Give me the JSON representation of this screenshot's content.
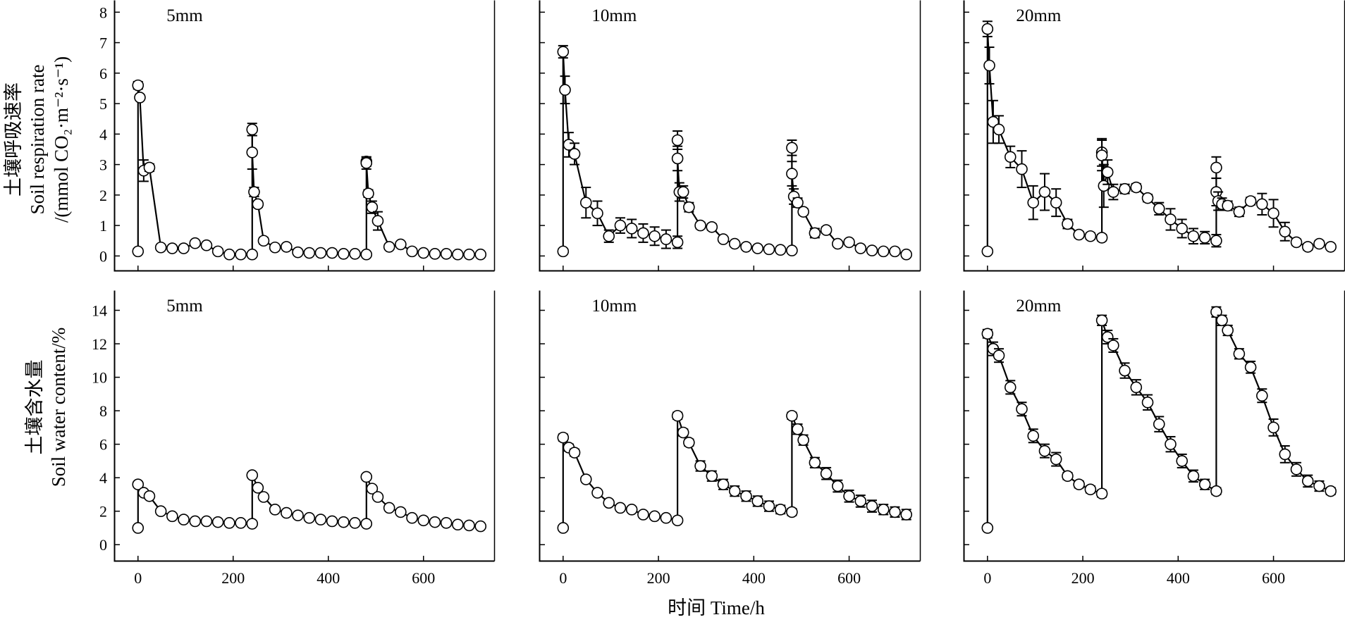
{
  "figure": {
    "ylabel_top_lines": [
      "土壤呼吸速率",
      "Soil respiration rate",
      "/(mmol CO₂·m⁻²·s⁻¹)"
    ],
    "ylabel_bottom_lines": [
      "土壤含水量",
      "Soil water content/%"
    ],
    "xlabel": "时间 Time/h"
  },
  "chart_data": [
    {
      "type": "line",
      "title": "5mm",
      "row": "respiration",
      "xlim": [
        -50,
        750
      ],
      "ylim": [
        -0.5,
        8.4
      ],
      "xticks": [
        0,
        200,
        400,
        600
      ],
      "yticks": [
        0,
        1,
        2,
        3,
        4,
        5,
        6,
        7,
        8
      ],
      "x": [
        0,
        0,
        4,
        12,
        24,
        48,
        72,
        96,
        120,
        144,
        168,
        192,
        216,
        240,
        240,
        240,
        244,
        252,
        264,
        288,
        312,
        336,
        360,
        384,
        408,
        432,
        456,
        480,
        480,
        480,
        484,
        492,
        504,
        528,
        552,
        576,
        600,
        624,
        648,
        672,
        696,
        720
      ],
      "y": [
        0.15,
        5.6,
        5.2,
        2.8,
        2.9,
        0.28,
        0.25,
        0.25,
        0.42,
        0.35,
        0.15,
        0.05,
        0.05,
        0.05,
        4.15,
        3.4,
        2.1,
        1.7,
        0.5,
        0.28,
        0.3,
        0.12,
        0.1,
        0.1,
        0.1,
        0.07,
        0.07,
        0.05,
        3.1,
        3.05,
        2.05,
        1.6,
        1.15,
        0.3,
        0.38,
        0.15,
        0.1,
        0.07,
        0.07,
        0.05,
        0.05,
        0.05
      ],
      "error": [
        0,
        0.12,
        0.08,
        0.35,
        0.12,
        0.08,
        0.05,
        0.05,
        0.08,
        0.08,
        0.05,
        0.03,
        0.03,
        0.03,
        0.2,
        0.55,
        0.15,
        0.1,
        0.1,
        0.05,
        0.05,
        0.03,
        0.03,
        0.03,
        0.03,
        0.03,
        0.03,
        0.03,
        0.15,
        0.2,
        0.12,
        0.2,
        0.3,
        0.08,
        0.08,
        0.05,
        0.03,
        0.03,
        0.03,
        0.02,
        0.02,
        0.02
      ]
    },
    {
      "type": "line",
      "title": "10mm",
      "row": "respiration",
      "xlim": [
        -50,
        750
      ],
      "ylim": [
        -0.5,
        8.4
      ],
      "xticks": [
        0,
        200,
        400,
        600
      ],
      "yticks": [
        0,
        1,
        2,
        3,
        4,
        5,
        6,
        7,
        8
      ],
      "x": [
        0,
        0,
        4,
        12,
        24,
        48,
        72,
        96,
        120,
        144,
        168,
        192,
        216,
        240,
        240,
        240,
        244,
        252,
        264,
        288,
        312,
        336,
        360,
        384,
        408,
        432,
        456,
        480,
        480,
        480,
        484,
        492,
        504,
        528,
        552,
        576,
        600,
        624,
        648,
        672,
        696,
        720
      ],
      "y": [
        0.15,
        6.7,
        5.45,
        3.65,
        3.35,
        1.75,
        1.4,
        0.65,
        1.0,
        0.9,
        0.75,
        0.65,
        0.55,
        0.45,
        3.8,
        3.2,
        2.1,
        2.1,
        1.6,
        1.0,
        0.95,
        0.55,
        0.4,
        0.3,
        0.25,
        0.22,
        0.2,
        0.18,
        3.55,
        2.7,
        1.95,
        1.75,
        1.45,
        0.75,
        0.85,
        0.4,
        0.45,
        0.25,
        0.18,
        0.15,
        0.15,
        0.05
      ],
      "error": [
        0,
        0.2,
        0.45,
        0.4,
        0.35,
        0.5,
        0.4,
        0.2,
        0.25,
        0.3,
        0.3,
        0.3,
        0.3,
        0.2,
        0.3,
        0.4,
        0.3,
        0.2,
        0.15,
        0.1,
        0.1,
        0.08,
        0.08,
        0.06,
        0.06,
        0.05,
        0.05,
        0.05,
        0.25,
        0.4,
        0.25,
        0.15,
        0.1,
        0.15,
        0.1,
        0.08,
        0.08,
        0.06,
        0.05,
        0.05,
        0.06,
        0.03
      ]
    },
    {
      "type": "line",
      "title": "20mm",
      "row": "respiration",
      "xlim": [
        -50,
        750
      ],
      "ylim": [
        -0.5,
        8.4
      ],
      "xticks": [
        0,
        200,
        400,
        600
      ],
      "yticks": [
        0,
        1,
        2,
        3,
        4,
        5,
        6,
        7,
        8
      ],
      "x": [
        0,
        0,
        4,
        12,
        24,
        48,
        72,
        96,
        120,
        144,
        168,
        192,
        216,
        240,
        240,
        240,
        244,
        252,
        264,
        288,
        312,
        336,
        360,
        384,
        408,
        432,
        456,
        480,
        480,
        480,
        484,
        492,
        504,
        528,
        552,
        576,
        600,
        624,
        648,
        672,
        696,
        720
      ],
      "y": [
        0.15,
        7.45,
        6.25,
        4.4,
        4.15,
        3.25,
        2.85,
        1.75,
        2.1,
        1.75,
        1.05,
        0.7,
        0.65,
        0.6,
        3.4,
        3.3,
        2.3,
        2.75,
        2.1,
        2.2,
        2.25,
        1.9,
        1.55,
        1.2,
        0.9,
        0.65,
        0.6,
        0.5,
        2.9,
        2.1,
        1.8,
        1.7,
        1.65,
        1.45,
        1.8,
        1.7,
        1.4,
        0.8,
        0.45,
        0.3,
        0.4,
        0.3
      ],
      "error": [
        0,
        0.25,
        0.6,
        0.7,
        0.45,
        0.35,
        0.6,
        0.55,
        0.6,
        0.45,
        0.15,
        0.1,
        0.1,
        0.1,
        0.45,
        0.5,
        0.7,
        0.4,
        0.25,
        0.15,
        0.12,
        0.12,
        0.2,
        0.35,
        0.3,
        0.25,
        0.2,
        0.2,
        0.35,
        0.45,
        0.3,
        0.2,
        0.15,
        0.15,
        0.12,
        0.35,
        0.45,
        0.3,
        0.1,
        0.1,
        0.1,
        0.08
      ]
    },
    {
      "type": "line",
      "title": "5mm",
      "row": "water",
      "xlim": [
        -50,
        750
      ],
      "ylim": [
        -1.0,
        15.2
      ],
      "xticks": [
        0,
        200,
        400,
        600
      ],
      "yticks": [
        0,
        2,
        4,
        6,
        8,
        10,
        12,
        14
      ],
      "x": [
        0,
        0,
        12,
        24,
        48,
        72,
        96,
        120,
        144,
        168,
        192,
        216,
        240,
        240,
        252,
        264,
        288,
        312,
        336,
        360,
        384,
        408,
        432,
        456,
        480,
        480,
        492,
        504,
        528,
        552,
        576,
        600,
        624,
        648,
        672,
        696,
        720
      ],
      "y": [
        1.0,
        3.6,
        3.1,
        2.9,
        2.0,
        1.7,
        1.5,
        1.4,
        1.4,
        1.35,
        1.3,
        1.3,
        1.25,
        4.15,
        3.4,
        2.85,
        2.1,
        1.9,
        1.75,
        1.6,
        1.5,
        1.4,
        1.35,
        1.3,
        1.25,
        4.05,
        3.35,
        2.85,
        2.2,
        1.95,
        1.6,
        1.45,
        1.35,
        1.3,
        1.2,
        1.15,
        1.1
      ],
      "error": [
        0,
        0.15,
        0.15,
        0.1,
        0.1,
        0.1,
        0.1,
        0.1,
        0.1,
        0.1,
        0.1,
        0.1,
        0.1,
        0.15,
        0.15,
        0.1,
        0.1,
        0.1,
        0.1,
        0.1,
        0.1,
        0.1,
        0.1,
        0.1,
        0.1,
        0.15,
        0.15,
        0.1,
        0.1,
        0.1,
        0.1,
        0.1,
        0.1,
        0.1,
        0.1,
        0.1,
        0.1
      ]
    },
    {
      "type": "line",
      "title": "10mm",
      "row": "water",
      "xlim": [
        -50,
        750
      ],
      "ylim": [
        -1.0,
        15.2
      ],
      "xticks": [
        0,
        200,
        400,
        600
      ],
      "yticks": [
        0,
        2,
        4,
        6,
        8,
        10,
        12,
        14
      ],
      "x": [
        0,
        0,
        12,
        24,
        48,
        72,
        96,
        120,
        144,
        168,
        192,
        216,
        240,
        240,
        252,
        264,
        288,
        312,
        336,
        360,
        384,
        408,
        432,
        456,
        480,
        480,
        492,
        504,
        528,
        552,
        576,
        600,
        624,
        648,
        672,
        696,
        720
      ],
      "y": [
        1.0,
        6.4,
        5.8,
        5.5,
        3.9,
        3.1,
        2.5,
        2.2,
        2.1,
        1.8,
        1.7,
        1.6,
        1.45,
        7.7,
        6.7,
        6.1,
        4.7,
        4.1,
        3.6,
        3.2,
        2.9,
        2.6,
        2.3,
        2.1,
        1.95,
        7.7,
        6.9,
        6.25,
        4.9,
        4.25,
        3.5,
        2.9,
        2.6,
        2.3,
        2.1,
        1.95,
        1.8
      ],
      "error": [
        0,
        0.2,
        0.2,
        0.2,
        0.15,
        0.15,
        0.15,
        0.15,
        0.15,
        0.15,
        0.1,
        0.1,
        0.1,
        0.2,
        0.2,
        0.2,
        0.3,
        0.3,
        0.3,
        0.3,
        0.3,
        0.3,
        0.3,
        0.25,
        0.2,
        0.2,
        0.3,
        0.3,
        0.3,
        0.35,
        0.35,
        0.35,
        0.35,
        0.35,
        0.3,
        0.3,
        0.3
      ]
    },
    {
      "type": "line",
      "title": "20mm",
      "row": "water",
      "xlim": [
        -50,
        750
      ],
      "ylim": [
        -1.0,
        15.2
      ],
      "xticks": [
        0,
        200,
        400,
        600
      ],
      "yticks": [
        0,
        2,
        4,
        6,
        8,
        10,
        12,
        14
      ],
      "x": [
        0,
        0,
        12,
        24,
        48,
        72,
        96,
        120,
        144,
        168,
        192,
        216,
        240,
        240,
        252,
        264,
        288,
        312,
        336,
        360,
        384,
        408,
        432,
        456,
        480,
        480,
        492,
        504,
        528,
        552,
        576,
        600,
        624,
        648,
        672,
        696,
        720
      ],
      "y": [
        1.0,
        12.6,
        11.7,
        11.3,
        9.4,
        8.1,
        6.5,
        5.6,
        5.1,
        4.1,
        3.6,
        3.3,
        3.05,
        13.4,
        12.4,
        11.9,
        10.4,
        9.4,
        8.5,
        7.2,
        6.0,
        5.0,
        4.1,
        3.6,
        3.2,
        13.9,
        13.4,
        12.8,
        11.4,
        10.6,
        8.9,
        7.0,
        5.4,
        4.5,
        3.8,
        3.5,
        3.2
      ],
      "error": [
        0,
        0.25,
        0.4,
        0.4,
        0.4,
        0.4,
        0.4,
        0.4,
        0.4,
        0.2,
        0.2,
        0.2,
        0.2,
        0.3,
        0.4,
        0.4,
        0.45,
        0.45,
        0.45,
        0.45,
        0.45,
        0.4,
        0.35,
        0.3,
        0.2,
        0.3,
        0.3,
        0.3,
        0.3,
        0.35,
        0.4,
        0.5,
        0.5,
        0.4,
        0.35,
        0.3,
        0.2
      ]
    }
  ]
}
